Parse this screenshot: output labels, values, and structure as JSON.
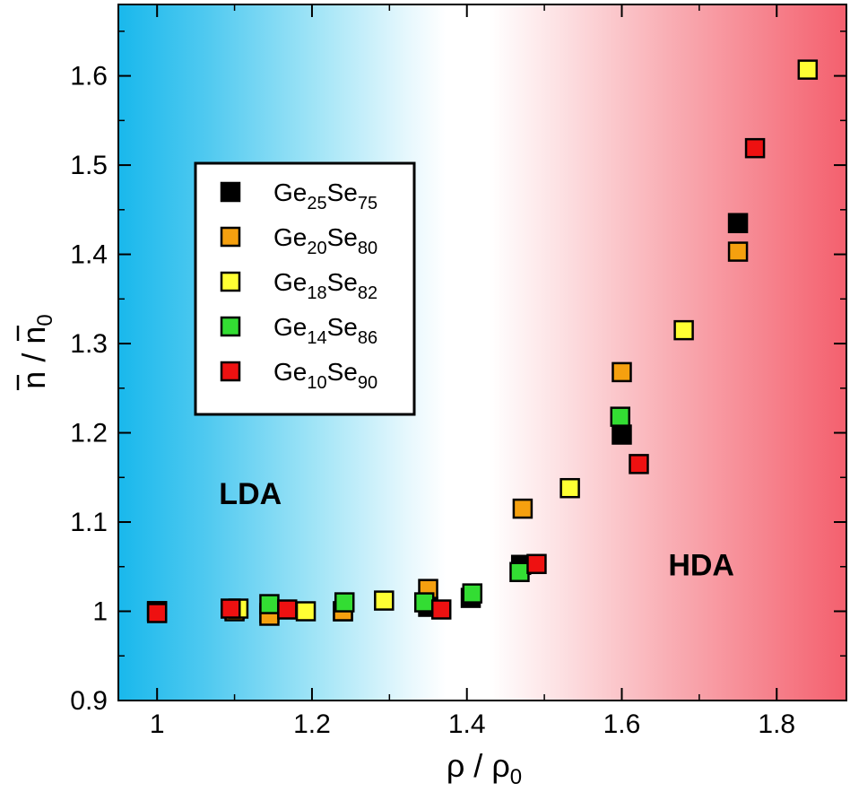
{
  "chart_data": {
    "type": "scatter",
    "xlabel": "ρ / ρ0",
    "ylabel": "n / n0",
    "xlim": [
      0.95,
      1.89
    ],
    "ylim": [
      0.9,
      1.68
    ],
    "x_ticks": [
      "1",
      "1.2",
      "1.4",
      "1.6",
      "1.8"
    ],
    "y_ticks": [
      "0.9",
      "1",
      "1.1",
      "1.2",
      "1.3",
      "1.4",
      "1.5",
      "1.6"
    ],
    "regions": [
      {
        "label": "LDA",
        "x": 1.08,
        "y": 1.12,
        "color": "#19b8ec"
      },
      {
        "label": "HDA",
        "x": 1.66,
        "y": 1.04,
        "color": "#f4606e"
      }
    ],
    "legend_position": "upper-left",
    "series": [
      {
        "name": "Ge25Se75",
        "base": "Ge",
        "sub1": "25",
        "mid": "Se",
        "sub2": "75",
        "color": "#000000",
        "points": [
          [
            1.0,
            1.0
          ],
          [
            1.1,
            1.002
          ],
          [
            1.145,
            0.998
          ],
          [
            1.24,
            1.0
          ],
          [
            1.35,
            1.005
          ],
          [
            1.405,
            1.015
          ],
          [
            1.47,
            1.052
          ],
          [
            1.6,
            1.198
          ],
          [
            1.75,
            1.435
          ]
        ]
      },
      {
        "name": "Ge20Se80",
        "base": "Ge",
        "sub1": "20",
        "mid": "Se",
        "sub2": "80",
        "color": "#f5a00f",
        "points": [
          [
            1.0,
            1.0
          ],
          [
            1.1,
            1.0
          ],
          [
            1.145,
            0.995
          ],
          [
            1.24,
            1.0
          ],
          [
            1.35,
            1.025
          ],
          [
            1.472,
            1.115
          ],
          [
            1.6,
            1.268
          ],
          [
            1.75,
            1.403
          ]
        ]
      },
      {
        "name": "Ge18Se82",
        "base": "Ge",
        "sub1": "18",
        "mid": "Se",
        "sub2": "82",
        "color": "#ffff33",
        "points": [
          [
            1.0,
            1.0
          ],
          [
            1.105,
            1.003
          ],
          [
            1.192,
            1.0
          ],
          [
            1.293,
            1.012
          ],
          [
            1.533,
            1.138
          ],
          [
            1.68,
            1.315
          ],
          [
            1.84,
            1.607
          ]
        ]
      },
      {
        "name": "Ge14Se86",
        "base": "Ge",
        "sub1": "14",
        "mid": "Se",
        "sub2": "86",
        "color": "#33dd33",
        "points": [
          [
            1.0,
            1.0
          ],
          [
            1.145,
            1.008
          ],
          [
            1.242,
            1.01
          ],
          [
            1.345,
            1.01
          ],
          [
            1.407,
            1.02
          ],
          [
            1.468,
            1.044
          ],
          [
            1.598,
            1.218
          ]
        ]
      },
      {
        "name": "Ge10Se90",
        "base": "Ge",
        "sub1": "10",
        "mid": "Se",
        "sub2": "90",
        "color": "#ee1111",
        "points": [
          [
            1.0,
            0.998
          ],
          [
            1.095,
            1.003
          ],
          [
            1.168,
            1.002
          ],
          [
            1.367,
            1.002
          ],
          [
            1.49,
            1.053
          ],
          [
            1.622,
            1.165
          ],
          [
            1.772,
            1.519
          ]
        ]
      }
    ]
  }
}
